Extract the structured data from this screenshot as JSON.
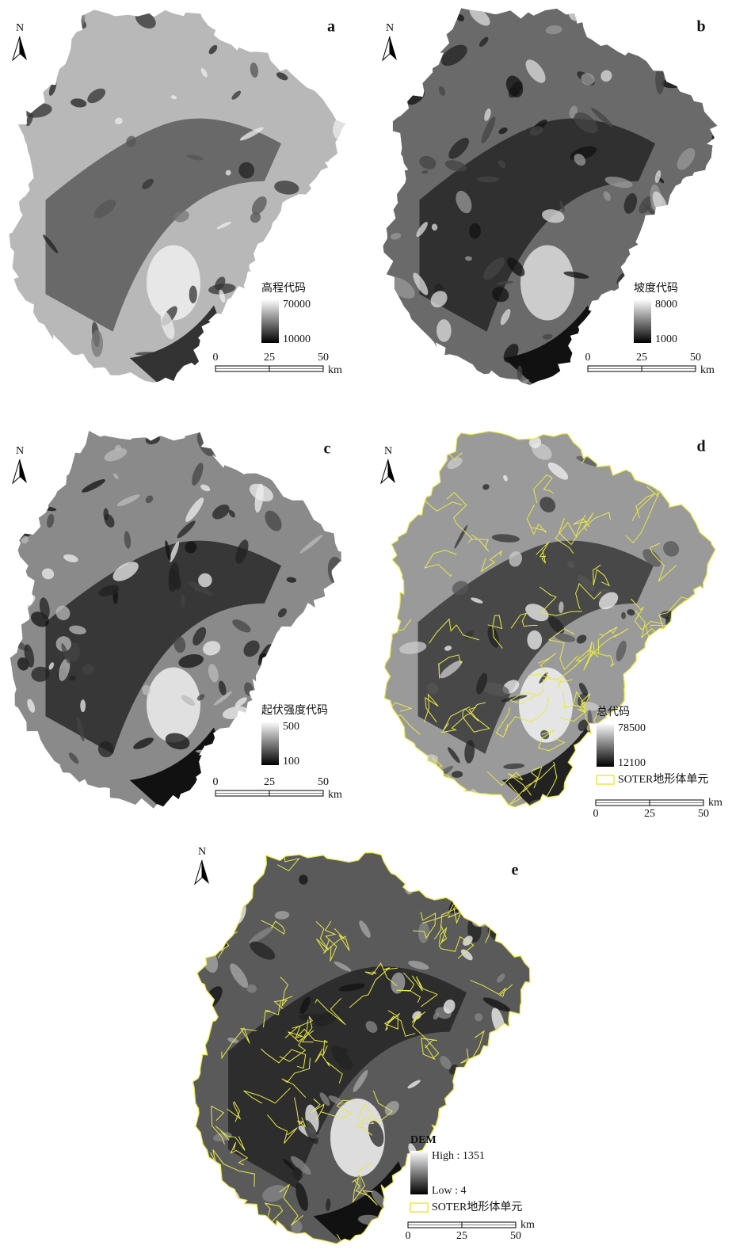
{
  "panels": [
    {
      "label": "a",
      "north": "N",
      "legend_title": "高程代码",
      "legend_high": 70000,
      "legend_low": 10000,
      "scale_ticks": [
        0,
        25,
        50
      ],
      "scale_unit": "km"
    },
    {
      "label": "b",
      "north": "N",
      "legend_title": "坡度代码",
      "legend_high": 8000,
      "legend_low": 1000,
      "scale_ticks": [
        0,
        25,
        50
      ],
      "scale_unit": "km"
    },
    {
      "label": "c",
      "north": "N",
      "legend_title": "起伏强度代码",
      "legend_high": 500,
      "legend_low": 100,
      "scale_ticks": [
        0,
        25,
        50
      ],
      "scale_unit": "km"
    },
    {
      "label": "d",
      "north": "N",
      "legend_title": "总代码",
      "legend_high": 78500,
      "legend_low": 12100,
      "boundary_label": "SOTER地形体单元",
      "scale_ticks": [
        0,
        25,
        50
      ],
      "scale_unit": "km"
    },
    {
      "label": "e",
      "north": "N",
      "legend_title": "DEM",
      "legend_high": "High : 1351",
      "legend_low": "Low : 4",
      "boundary_label": "SOTER地形体单元",
      "scale_ticks": [
        0,
        25,
        50
      ],
      "scale_unit": "km"
    }
  ]
}
